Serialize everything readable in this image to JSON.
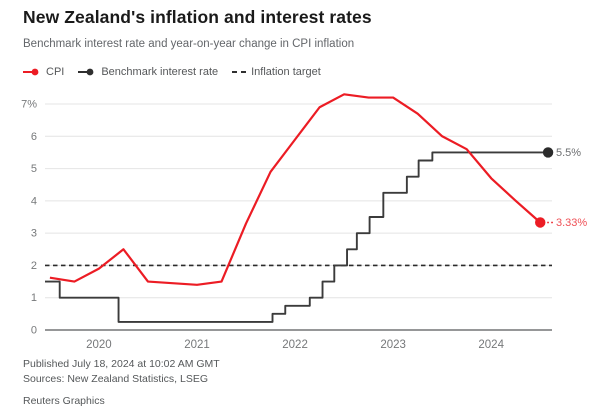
{
  "header": {
    "title": "New Zealand's inflation and interest rates",
    "subtitle": "Benchmark interest rate and year-on-year change in CPI inflation"
  },
  "legend": [
    {
      "label": "CPI",
      "marker": "line-dot",
      "color": "#ec1c24"
    },
    {
      "label": "Benchmark interest rate",
      "marker": "line-dot",
      "color": "#2f2f2f"
    },
    {
      "label": "Inflation target",
      "marker": "dashes",
      "color": "#2f2f2f"
    }
  ],
  "chart_data": {
    "type": "line",
    "title": "New Zealand's inflation and interest rates",
    "subtitle": "Benchmark interest rate and year-on-year change in CPI inflation",
    "xlabel": "",
    "ylabel": "",
    "x_domain": [
      2019.45,
      2024.62
    ],
    "ylim": [
      0,
      7
    ],
    "y_ticks": [
      0,
      1,
      2,
      3,
      4,
      5,
      6,
      7
    ],
    "y_tick_labels": [
      "0",
      "1",
      "2",
      "3",
      "4",
      "5",
      "6",
      "7%"
    ],
    "x_ticks": [
      2020,
      2021,
      2022,
      2023,
      2024
    ],
    "x_tick_labels": [
      "2020",
      "2021",
      "2022",
      "2023",
      "2024"
    ],
    "grid": true,
    "legend_position": "top-left",
    "target_line": {
      "value": 2,
      "label": "Inflation target",
      "color": "#2b2b2b",
      "style": "dashed"
    },
    "series": [
      {
        "name": "Benchmark interest rate",
        "type": "step",
        "color": "#3b3b3b",
        "dot_color": "#2b2b2b",
        "end_label": "5.5%",
        "end_label_color": "#6d6f71",
        "leader_dots": false,
        "points": [
          [
            2019.45,
            1.5
          ],
          [
            2019.6,
            1.0
          ],
          [
            2020.2,
            0.25
          ],
          [
            2021.77,
            0.5
          ],
          [
            2021.9,
            0.75
          ],
          [
            2022.15,
            1.0
          ],
          [
            2022.28,
            1.5
          ],
          [
            2022.4,
            2.0
          ],
          [
            2022.53,
            2.5
          ],
          [
            2022.63,
            3.0
          ],
          [
            2022.76,
            3.5
          ],
          [
            2022.9,
            4.25
          ],
          [
            2023.14,
            4.75
          ],
          [
            2023.26,
            5.25
          ],
          [
            2023.4,
            5.5
          ],
          [
            2024.58,
            5.5
          ]
        ]
      },
      {
        "name": "CPI",
        "type": "line",
        "color": "#ec1c24",
        "dot_color": "#ec1c24",
        "end_label": "3.33%",
        "end_label_color": "#ef5056",
        "leader_dots": true,
        "points": [
          [
            2019.5,
            1.62
          ],
          [
            2019.75,
            1.5
          ],
          [
            2020.0,
            1.9
          ],
          [
            2020.25,
            2.5
          ],
          [
            2020.5,
            1.5
          ],
          [
            2020.75,
            1.45
          ],
          [
            2021.0,
            1.4
          ],
          [
            2021.25,
            1.5
          ],
          [
            2021.5,
            3.3
          ],
          [
            2021.75,
            4.9
          ],
          [
            2022.0,
            5.9
          ],
          [
            2022.25,
            6.9
          ],
          [
            2022.5,
            7.3
          ],
          [
            2022.75,
            7.2
          ],
          [
            2023.0,
            7.2
          ],
          [
            2023.25,
            6.7
          ],
          [
            2023.5,
            6.0
          ],
          [
            2023.75,
            5.6
          ],
          [
            2024.0,
            4.7
          ],
          [
            2024.25,
            4.0
          ],
          [
            2024.5,
            3.33
          ]
        ]
      }
    ]
  },
  "footer": {
    "published": "Published July 18, 2024 at 10:02 AM GMT",
    "sources": "Sources: New Zealand Statistics, LSEG",
    "credit": "Reuters Graphics"
  },
  "colors": {
    "grid": "#e4e4e4",
    "axis": "#58595b",
    "tick_text": "#76787a",
    "background": "#ffffff"
  }
}
